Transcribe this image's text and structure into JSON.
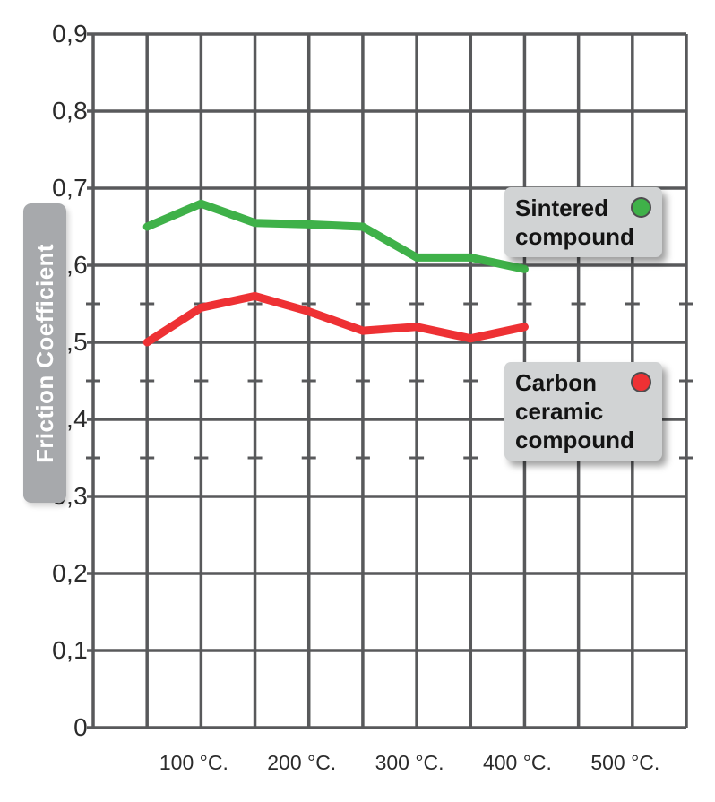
{
  "chart_data": {
    "type": "line",
    "title": "",
    "xlabel": "",
    "ylabel": "Friction Coefficient",
    "x": [
      50,
      100,
      150,
      200,
      250,
      300,
      350,
      400
    ],
    "series": [
      {
        "name": "Sintered compound",
        "color": "#3fb149",
        "values": [
          0.65,
          0.68,
          0.655,
          0.653,
          0.65,
          0.61,
          0.61,
          0.595
        ]
      },
      {
        "name": "Carbon ceramic compound",
        "color": "#ee3134",
        "values": [
          0.5,
          0.545,
          0.56,
          0.54,
          0.515,
          0.52,
          0.505,
          0.52
        ]
      }
    ],
    "xlim": [
      0,
      550
    ],
    "ylim": [
      0,
      0.9
    ],
    "x_grid_step": 50,
    "y_grid_step": 0.1,
    "minor_tick_values": [
      0.35,
      0.45,
      0.55
    ],
    "grid": "on",
    "legend_position": "inside-right",
    "y_ticks": [
      {
        "v": 0.0,
        "label": "0"
      },
      {
        "v": 0.1,
        "label": "0,1"
      },
      {
        "v": 0.2,
        "label": "0,2"
      },
      {
        "v": 0.3,
        "label": "0,3"
      },
      {
        "v": 0.4,
        "label": "0,4"
      },
      {
        "v": 0.5,
        "label": "0,5"
      },
      {
        "v": 0.6,
        "label": "0,6"
      },
      {
        "v": 0.7,
        "label": "0,7"
      },
      {
        "v": 0.8,
        "label": "0,8"
      },
      {
        "v": 0.9,
        "label": "0,9"
      }
    ],
    "x_ticks": [
      {
        "v": 100,
        "label": "100 °C."
      },
      {
        "v": 200,
        "label": "200 °C."
      },
      {
        "v": 300,
        "label": "300 °C."
      },
      {
        "v": 400,
        "label": "400 °C."
      },
      {
        "v": 500,
        "label": "500 °C."
      }
    ]
  },
  "legends": [
    {
      "lines": [
        "Sintered",
        "compound"
      ],
      "marker_color": "#3fb149"
    },
    {
      "lines": [
        "Carbon",
        "ceramic",
        "compound"
      ],
      "marker_color": "#ee3134"
    }
  ],
  "colors": {
    "grid": "#58595b",
    "legend_bg": "#d1d3d4",
    "axis_title_bg": "#a7a9ac",
    "text": "#2b2b2b"
  }
}
